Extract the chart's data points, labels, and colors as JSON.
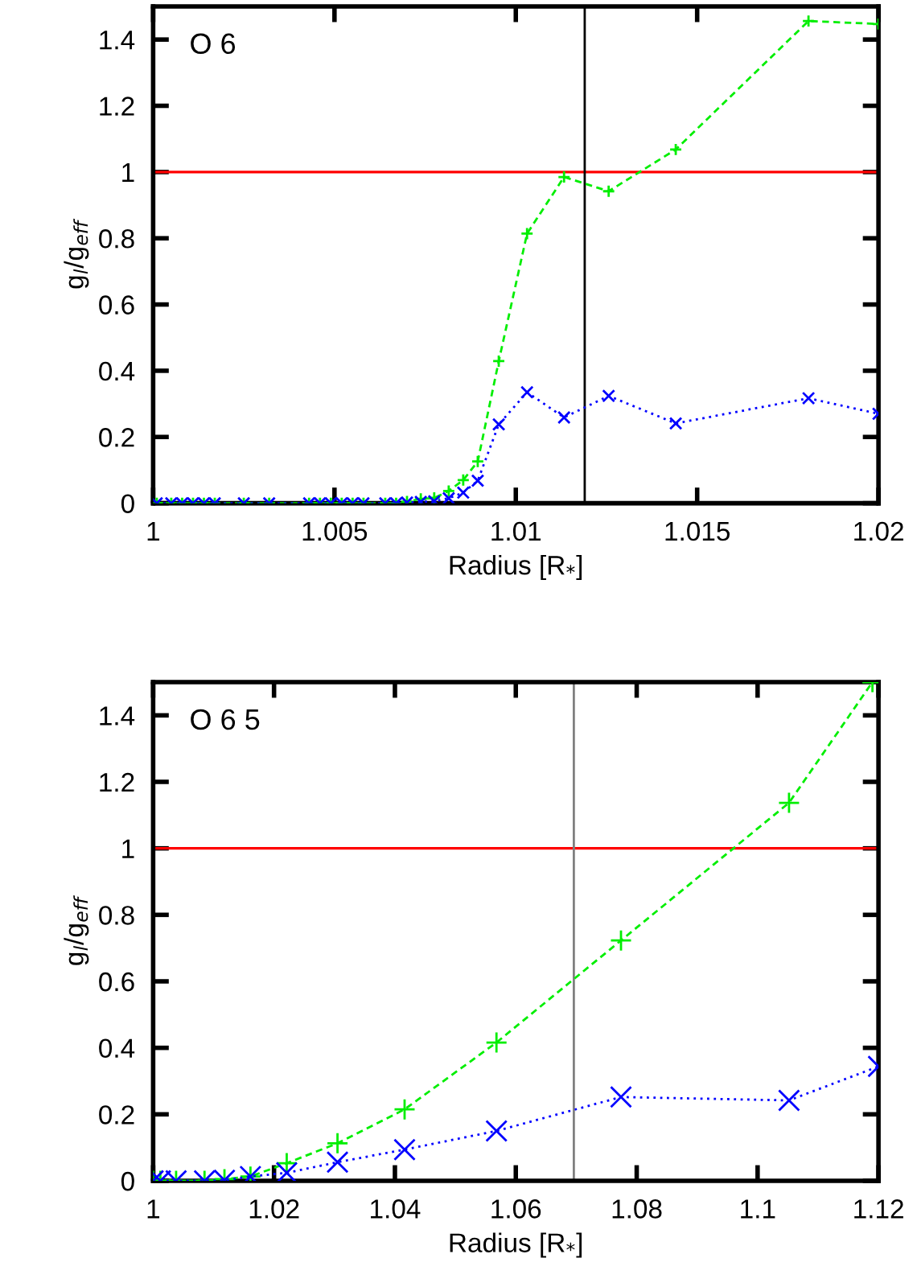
{
  "chart_data": [
    {
      "type": "line",
      "xlabel": "Radius [R$_{*}$]",
      "ylabel": "g$_{l}$/g$_{eff}$",
      "annotations": [
        "O 6"
      ],
      "xlim": [
        1,
        1.02
      ],
      "xticks": [
        1,
        1.005,
        1.01,
        1.015,
        1.02
      ],
      "ylim": [
        0,
        1.5
      ],
      "yticks": [
        0,
        0.2,
        0.4,
        0.6,
        0.8,
        1,
        1.2,
        1.4
      ],
      "grid": false,
      "legend": false,
      "x": [
        1.0001,
        1.0005,
        1.0008,
        1.0011,
        1.0014,
        1.0017,
        1.0025,
        1.0032,
        1.0043,
        1.0046,
        1.0049,
        1.0052,
        1.0055,
        1.0058,
        1.0064,
        1.0067,
        1.007,
        1.00738,
        1.00775,
        1.00815,
        1.00855,
        1.00895,
        1.00953,
        1.01031,
        1.01133,
        1.01256,
        1.01441,
        1.01807,
        1.02
      ],
      "series": [
        {
          "color": "#00ee00",
          "marker": "plus",
          "line_style": "dashed",
          "values": [
            0,
            0,
            0,
            0,
            0,
            0,
            0,
            0,
            0,
            0,
            0,
            0,
            0,
            0,
            0,
            0,
            0.005,
            0.013,
            0.016,
            0.037,
            0.07,
            0.126,
            0.429,
            0.814,
            0.985,
            0.942,
            1.068,
            1.456,
            1.447
          ]
        },
        {
          "color": "#0000ff",
          "marker": "cross",
          "line_style": "dotted",
          "values": [
            0,
            0,
            0,
            0,
            0,
            0,
            0,
            0,
            0,
            0,
            0,
            0,
            0,
            0,
            0,
            0,
            0.002,
            0.004,
            0.006,
            0.015,
            0.032,
            0.068,
            0.238,
            0.335,
            0.259,
            0.324,
            0.241,
            0.317,
            0.27
          ]
        }
      ],
      "ref_lines": [
        {
          "axis": "y",
          "value": 1,
          "color": "#ff0000"
        },
        {
          "axis": "x",
          "value": 1.0119,
          "color": "#000000"
        }
      ]
    },
    {
      "type": "line",
      "xlabel": "Radius [R$_{*}$]",
      "ylabel": "g$_{l}$/g$_{eff}$",
      "annotations": [
        "O 6 5"
      ],
      "xlim": [
        1,
        1.12
      ],
      "xticks": [
        1,
        1.02,
        1.04,
        1.06,
        1.08,
        1.1,
        1.12
      ],
      "ylim": [
        0,
        1.5
      ],
      "yticks": [
        0,
        0.2,
        0.4,
        0.6,
        0.8,
        1,
        1.2,
        1.4
      ],
      "grid": false,
      "legend": false,
      "series": [
        {
          "color": "#00ee00",
          "marker": "plus",
          "line_style": "dashed",
          "x": [
            1.0,
            1.0012,
            1.0038,
            1.0085,
            1.0118,
            1.0161,
            1.0221,
            1.0305,
            1.0416,
            1.0568,
            1.0774,
            1.1052,
            1.119
          ],
          "values": [
            0,
            0,
            0,
            0,
            0.005,
            0.013,
            0.053,
            0.113,
            0.215,
            0.416,
            0.723,
            1.137,
            1.5
          ]
        },
        {
          "color": "#0000ff",
          "marker": "cross",
          "line_style": "dotted",
          "x": [
            1.0,
            1.0012,
            1.0038,
            1.0085,
            1.0118,
            1.0161,
            1.0221,
            1.0305,
            1.0416,
            1.0568,
            1.0774,
            1.1052,
            1.12
          ],
          "values": [
            0,
            0,
            0,
            0,
            0.002,
            0.013,
            0.024,
            0.056,
            0.094,
            0.15,
            0.252,
            0.242,
            0.344
          ]
        }
      ],
      "ref_lines": [
        {
          "axis": "y",
          "value": 1,
          "color": "#ff0000"
        },
        {
          "axis": "x",
          "value": 1.0696,
          "color": "#808080"
        }
      ]
    }
  ]
}
